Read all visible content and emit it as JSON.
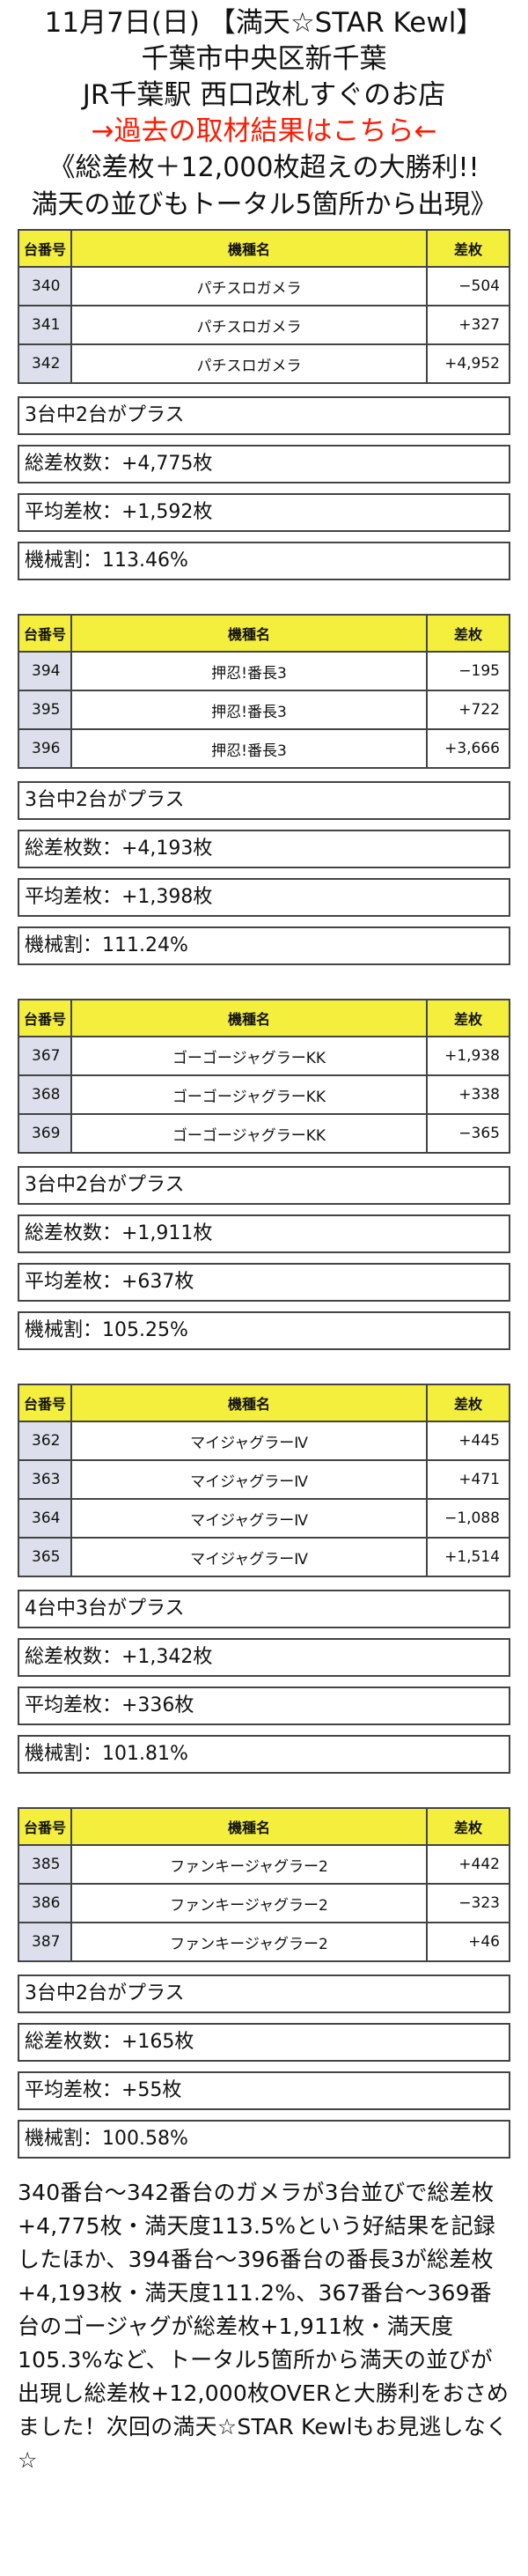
{
  "header": {
    "line1": "11月7日(日) 【満天☆STAR Kewl】",
    "line2": "千葉市中央区新千葉",
    "line3": "JR千葉駅 西口改札すぐのお店",
    "link": "→過去の取材結果はこちら←",
    "headline1": "《総差枚＋12,000枚超えの大勝利!!",
    "headline2": "満天の並びもトータル5箇所から出現》"
  },
  "columns": {
    "num": "台番号",
    "model": "機種名",
    "diff": "差枚"
  },
  "groups": [
    {
      "rows": [
        {
          "num": "340",
          "model": "パチスロガメラ",
          "diff": "−504"
        },
        {
          "num": "341",
          "model": "パチスロガメラ",
          "diff": "+327"
        },
        {
          "num": "342",
          "model": "パチスロガメラ",
          "diff": "+4,952"
        }
      ],
      "summary": {
        "plus": "3台中2台がプラス",
        "total": "総差枚数：+4,775枚",
        "avg": "平均差枚：+1,592枚",
        "rate": "機械割：113.46%"
      }
    },
    {
      "rows": [
        {
          "num": "394",
          "model": "押忍!番長3",
          "diff": "−195"
        },
        {
          "num": "395",
          "model": "押忍!番長3",
          "diff": "+722"
        },
        {
          "num": "396",
          "model": "押忍!番長3",
          "diff": "+3,666"
        }
      ],
      "summary": {
        "plus": "3台中2台がプラス",
        "total": "総差枚数：+4,193枚",
        "avg": "平均差枚：+1,398枚",
        "rate": "機械割：111.24%"
      }
    },
    {
      "rows": [
        {
          "num": "367",
          "model": "ゴーゴージャグラーKK",
          "diff": "+1,938"
        },
        {
          "num": "368",
          "model": "ゴーゴージャグラーKK",
          "diff": "+338"
        },
        {
          "num": "369",
          "model": "ゴーゴージャグラーKK",
          "diff": "−365"
        }
      ],
      "summary": {
        "plus": "3台中2台がプラス",
        "total": "総差枚数：+1,911枚",
        "avg": "平均差枚：+637枚",
        "rate": "機械割：105.25%"
      }
    },
    {
      "rows": [
        {
          "num": "362",
          "model": "マイジャグラーⅣ",
          "diff": "+445"
        },
        {
          "num": "363",
          "model": "マイジャグラーⅣ",
          "diff": "+471"
        },
        {
          "num": "364",
          "model": "マイジャグラーⅣ",
          "diff": "−1,088"
        },
        {
          "num": "365",
          "model": "マイジャグラーⅣ",
          "diff": "+1,514"
        }
      ],
      "summary": {
        "plus": "4台中3台がプラス",
        "total": "総差枚数：+1,342枚",
        "avg": "平均差枚：+336枚",
        "rate": "機械割：101.81%"
      }
    },
    {
      "rows": [
        {
          "num": "385",
          "model": "ファンキージャグラー2",
          "diff": "+442"
        },
        {
          "num": "386",
          "model": "ファンキージャグラー2",
          "diff": "−323"
        },
        {
          "num": "387",
          "model": "ファンキージャグラー2",
          "diff": "+46"
        }
      ],
      "summary": {
        "plus": "3台中2台がプラス",
        "total": "総差枚数：+165枚",
        "avg": "平均差枚：+55枚",
        "rate": "機械割：100.58%"
      }
    }
  ],
  "paragraph": "340番台〜342番台のガメラが3台並びで総差枚+4,775枚・満天度113.5%という好結果を記録したほか、394番台〜396番台の番長3が総差枚+4,193枚・満天度111.2%、367番台〜369番台のゴージャグが総差枚+1,911枚・満天度105.3%など、トータル5箇所から満天の並びが出現し総差枚+12,000枚OVERと大勝利をおさめました！次回の満天☆STAR Kewlもお見逃しなく☆"
}
